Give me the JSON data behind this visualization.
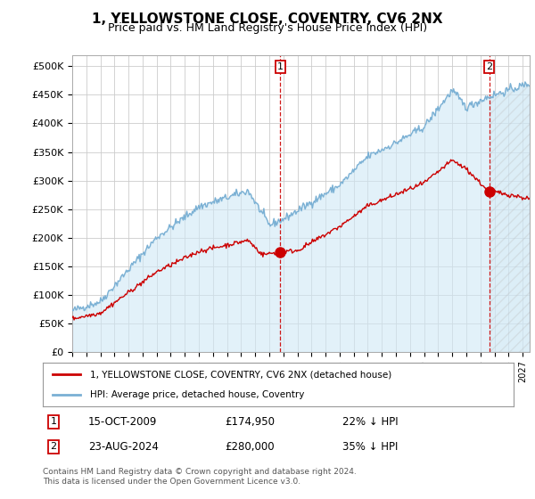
{
  "title": "1, YELLOWSTONE CLOSE, COVENTRY, CV6 2NX",
  "subtitle": "Price paid vs. HM Land Registry's House Price Index (HPI)",
  "ylabel_ticks": [
    "£0",
    "£50K",
    "£100K",
    "£150K",
    "£200K",
    "£250K",
    "£300K",
    "£350K",
    "£400K",
    "£450K",
    "£500K"
  ],
  "ytick_values": [
    0,
    50000,
    100000,
    150000,
    200000,
    250000,
    300000,
    350000,
    400000,
    450000,
    500000
  ],
  "ylim": [
    0,
    520000
  ],
  "xlim_start": 1995.0,
  "xlim_end": 2027.5,
  "hpi_color": "#7ab0d4",
  "hpi_fill_color": "#d0e8f5",
  "sale_color": "#cc0000",
  "vline_color": "#cc0000",
  "marker1_x": 2009.79,
  "marker1_y": 174950,
  "marker2_x": 2024.64,
  "marker2_y": 280000,
  "legend_entry1": "1, YELLOWSTONE CLOSE, COVENTRY, CV6 2NX (detached house)",
  "legend_entry2": "HPI: Average price, detached house, Coventry",
  "table_row1": [
    "1",
    "15-OCT-2009",
    "£174,950",
    "22% ↓ HPI"
  ],
  "table_row2": [
    "2",
    "23-AUG-2024",
    "£280,000",
    "35% ↓ HPI"
  ],
  "footer": "Contains HM Land Registry data © Crown copyright and database right 2024.\nThis data is licensed under the Open Government Licence v3.0.",
  "background_color": "#ffffff",
  "grid_color": "#cccccc"
}
